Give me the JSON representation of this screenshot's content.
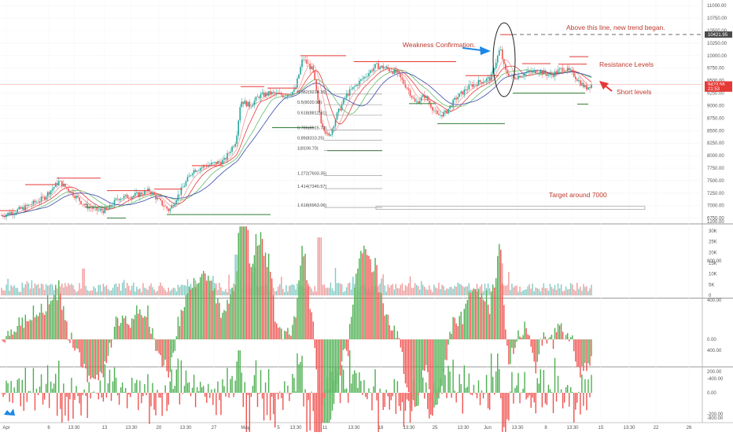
{
  "chart_data": [
    {
      "type": "candlestick",
      "panel": "price",
      "title": "",
      "xlabel": "",
      "ylabel": "",
      "x_tick_labels": [
        "Apr",
        "6",
        "13:30",
        "13",
        "13:30",
        "20",
        "13:30",
        "27",
        "May",
        "5",
        "13:30",
        "11",
        "13:30",
        "18",
        "13:30",
        "25",
        "13:30",
        "Jun",
        "13:30",
        "8",
        "13:30",
        "15",
        "13:30",
        "22",
        "26"
      ],
      "y_tick_labels": [
        "11000.00",
        "10750.00",
        "10500.00",
        "10250.00",
        "10000.00",
        "9750.00",
        "9500.00",
        "9250.00",
        "9000.00",
        "8750.00",
        "8500.00",
        "8250.00",
        "8000.00",
        "7750.00",
        "7500.00",
        "7250.00",
        "7000.00",
        "6750.00"
      ],
      "ylim": [
        6650,
        11050
      ],
      "price_markers": [
        {
          "label": "10421.95",
          "value": 10421.95,
          "color": "#4a4a4a"
        },
        {
          "label": "9423.56",
          "value": 9423.56,
          "color": "#e53935"
        },
        {
          "label": "21:53",
          "value": 9340,
          "color": "#e53935"
        }
      ],
      "fib_levels": [
        {
          "label": "0.382(9230.36)",
          "value": 9230.36
        },
        {
          "label": "0.5(9020.98)",
          "value": 9020.98
        },
        {
          "label": "0.618(8812.61)",
          "value": 8812.61
        },
        {
          "label": "0.786(8515.73)",
          "value": 8515.73
        },
        {
          "label": "0.89(8310.25)",
          "value": 8310.25
        },
        {
          "label": "1(8106.70)",
          "value": 8106.7
        },
        {
          "label": "1.272(7603.35)",
          "value": 7603.35
        },
        {
          "label": "1.414(7340.57)",
          "value": 7340.57
        },
        {
          "label": "1.618(6963.06)",
          "value": 6963.06
        }
      ],
      "annotations": [
        {
          "text": "Above this line, new trend began.",
          "color": "#c0392b"
        },
        {
          "text": "Weakness Confirmation.",
          "color": "#c0392b"
        },
        {
          "text": "Resistance Levels",
          "color": "#c0392b"
        },
        {
          "text": "Short levels",
          "color": "#c0392b"
        },
        {
          "text": "Target around 7000",
          "color": "#c0392b"
        }
      ],
      "series_description": "BTC 4h-style candles rising from ~6800 (early Apr) to ~9950 (early May), pullback to ~8300, range 9000-9800 through May, spike to ~10400 on Jun 1, then range ~9400-9900 with last close 9423.56",
      "key_points": [
        {
          "x": "Apr",
          "y": 6800
        },
        {
          "x": "6",
          "y": 7300
        },
        {
          "x": "13",
          "y": 6900
        },
        {
          "x": "20",
          "y": 7200
        },
        {
          "x": "27",
          "y": 7700
        },
        {
          "x": "May",
          "y": 9000
        },
        {
          "x": "5",
          "y": 9000
        },
        {
          "x": "11",
          "y": 8600
        },
        {
          "x": "18",
          "y": 9700
        },
        {
          "x": "25",
          "y": 8900
        },
        {
          "x": "Jun",
          "y": 9500
        },
        {
          "x": "8",
          "y": 9700
        },
        {
          "x": "15",
          "y": 9420
        }
      ]
    },
    {
      "type": "bar",
      "panel": "volume",
      "y_tick_labels": [
        "30K",
        "25K",
        "20K",
        "15K",
        "10K",
        "5K",
        "0"
      ],
      "ylim": [
        0,
        30000
      ]
    },
    {
      "type": "bar",
      "panel": "histogram-1",
      "y_tick_labels": [
        "1200.00",
        "800.00",
        "400.00",
        "0.00",
        "-400.00",
        "-800.00"
      ],
      "ylim": [
        -900,
        1250
      ]
    },
    {
      "type": "bar",
      "panel": "histogram-2",
      "y_tick_labels": [
        "400.00",
        "200.00",
        "0.00",
        "-200.00",
        "-400.00"
      ],
      "ylim": [
        -450,
        430
      ]
    }
  ],
  "colors": {
    "up": "#26a69a",
    "down": "#ef5350",
    "up_hist": "#4caf50",
    "down_hist": "#ef5350",
    "annotation": "#c0392b",
    "arrow_blue": "#1e88e5",
    "level_red": "#e53935",
    "level_green": "#2e7d32"
  },
  "icons": {
    "logo": "tradingview-logo-icon"
  }
}
